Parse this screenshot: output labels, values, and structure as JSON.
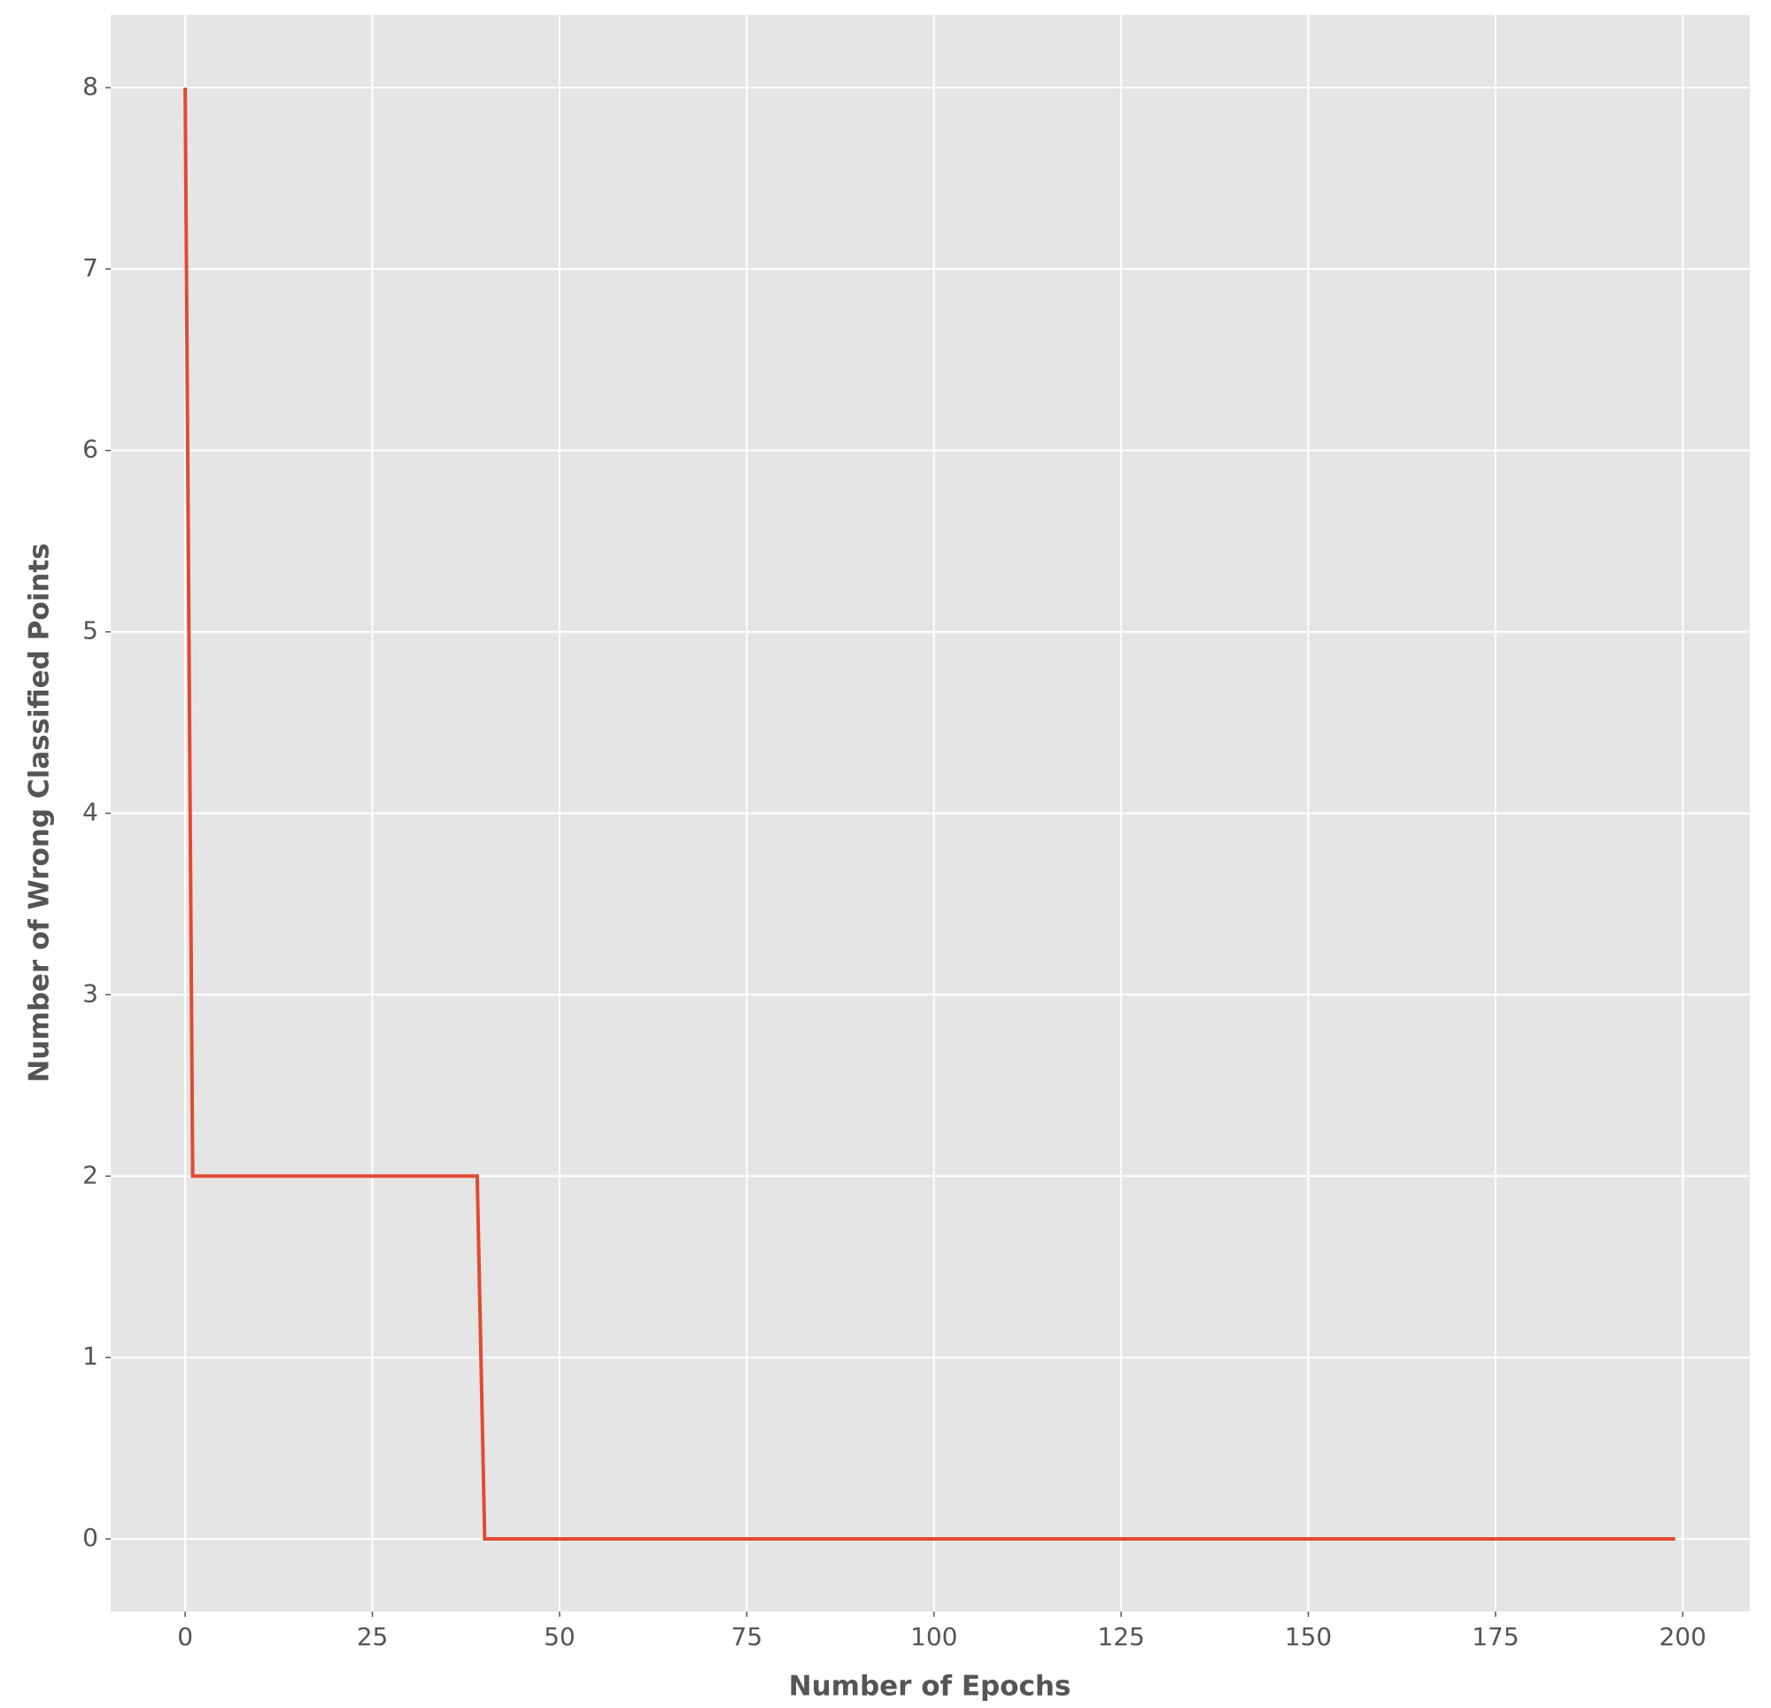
{
  "chart_data": {
    "type": "line",
    "x_label": "Number of Epochs",
    "y_label": "Number of Wrong Classified Points",
    "series": [
      {
        "color": "#e24a33",
        "x": [
          0,
          1,
          39,
          40,
          199
        ],
        "values": [
          8,
          2,
          2,
          0,
          0
        ]
      }
    ],
    "xlim": [
      -9.95,
      208.95
    ],
    "ylim": [
      -0.4,
      8.4
    ],
    "xticks": [
      0,
      25,
      50,
      75,
      100,
      125,
      150,
      175,
      200
    ],
    "yticks": [
      0,
      1,
      2,
      3,
      4,
      5,
      6,
      7,
      8
    ],
    "grid": true
  }
}
